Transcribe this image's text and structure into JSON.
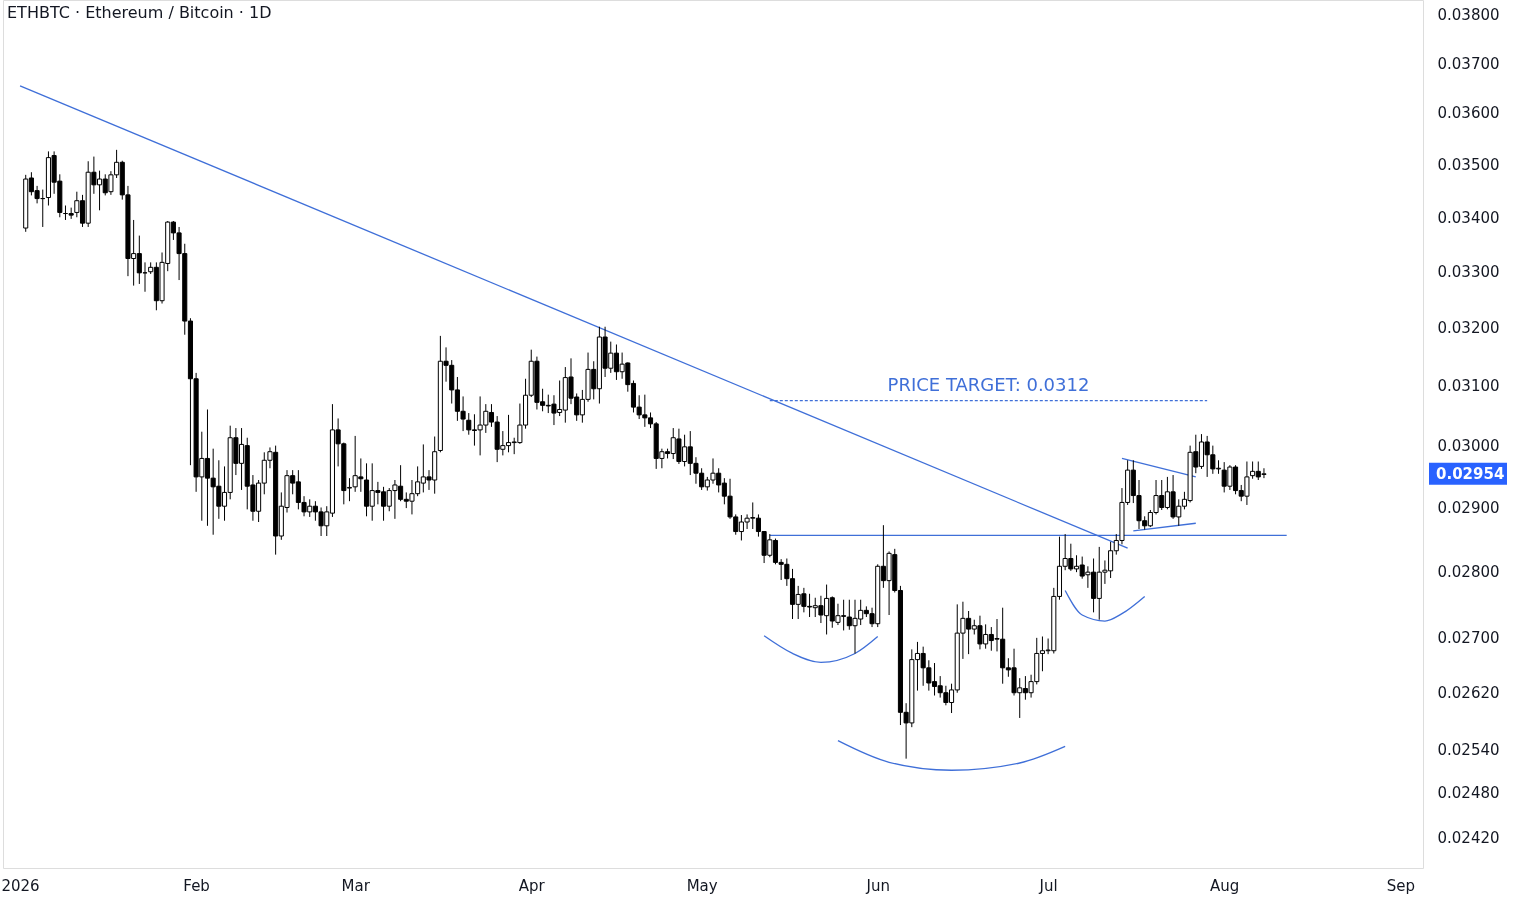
{
  "chart_data": {
    "type": "candlestick",
    "title": "ETHBTC · Ethereum / Bitcoin · 1D",
    "log": true,
    "xlim": [
      "2025-12-29",
      "2026-09-05"
    ],
    "xticks": [
      {
        "value": "2026-01-01",
        "label": "2026"
      },
      {
        "value": "2026-02-01",
        "label": "Feb"
      },
      {
        "value": "2026-03-01",
        "label": "Mar"
      },
      {
        "value": "2026-04-01",
        "label": "Apr"
      },
      {
        "value": "2026-05-01",
        "label": "May"
      },
      {
        "value": "2026-06-01",
        "label": "Jun"
      },
      {
        "value": "2026-07-01",
        "label": "Jul"
      },
      {
        "value": "2026-08-01",
        "label": "Aug"
      },
      {
        "value": "2026-09-01",
        "label": "Sep"
      }
    ],
    "ylim": [
      0.0238,
      0.0383
    ],
    "yticks": [
      {
        "value": 0.038,
        "label": "0.03800"
      },
      {
        "value": 0.037,
        "label": "0.03700"
      },
      {
        "value": 0.036,
        "label": "0.03600"
      },
      {
        "value": 0.035,
        "label": "0.03500"
      },
      {
        "value": 0.034,
        "label": "0.03400"
      },
      {
        "value": 0.033,
        "label": "0.03300"
      },
      {
        "value": 0.032,
        "label": "0.03200"
      },
      {
        "value": 0.031,
        "label": "0.03100"
      },
      {
        "value": 0.03,
        "label": "0.03000"
      },
      {
        "value": 0.029,
        "label": "0.02900"
      },
      {
        "value": 0.028,
        "label": "0.02800"
      },
      {
        "value": 0.027,
        "label": "0.02700"
      },
      {
        "value": 0.0262,
        "label": "0.02620"
      },
      {
        "value": 0.0254,
        "label": "0.02540"
      },
      {
        "value": 0.0248,
        "label": "0.02480"
      },
      {
        "value": 0.0242,
        "label": "0.02420"
      }
    ],
    "x": [
      "2026-01-02",
      "2026-01-03",
      "2026-01-04",
      "2026-01-05",
      "2026-01-06",
      "2026-01-07",
      "2026-01-08",
      "2026-01-09",
      "2026-01-10",
      "2026-01-11",
      "2026-01-12",
      "2026-01-13",
      "2026-01-14",
      "2026-01-15",
      "2026-01-16",
      "2026-01-17",
      "2026-01-18",
      "2026-01-19",
      "2026-01-20",
      "2026-01-21",
      "2026-01-22",
      "2026-01-23",
      "2026-01-24",
      "2026-01-25",
      "2026-01-26",
      "2026-01-27",
      "2026-01-28",
      "2026-01-29",
      "2026-01-30",
      "2026-01-31",
      "2026-02-01",
      "2026-02-02",
      "2026-02-03",
      "2026-02-04",
      "2026-02-05",
      "2026-02-06",
      "2026-02-07",
      "2026-02-08",
      "2026-02-09",
      "2026-02-10",
      "2026-02-11",
      "2026-02-12",
      "2026-02-13",
      "2026-02-14",
      "2026-02-15",
      "2026-02-16",
      "2026-02-17",
      "2026-02-18",
      "2026-02-19",
      "2026-02-20",
      "2026-02-21",
      "2026-02-22",
      "2026-02-23",
      "2026-02-24",
      "2026-02-25",
      "2026-02-26",
      "2026-02-27",
      "2026-02-28",
      "2026-03-01",
      "2026-03-02",
      "2026-03-03",
      "2026-03-04",
      "2026-03-05",
      "2026-03-06",
      "2026-03-07",
      "2026-03-08",
      "2026-03-09",
      "2026-03-10",
      "2026-03-11",
      "2026-03-12",
      "2026-03-13",
      "2026-03-14",
      "2026-03-15",
      "2026-03-16",
      "2026-03-17",
      "2026-03-18",
      "2026-03-19",
      "2026-03-20",
      "2026-03-21",
      "2026-03-22",
      "2026-03-23",
      "2026-03-24",
      "2026-03-25",
      "2026-03-26",
      "2026-03-27",
      "2026-03-28",
      "2026-03-29",
      "2026-03-30",
      "2026-03-31",
      "2026-04-01",
      "2026-04-02",
      "2026-04-03",
      "2026-04-04",
      "2026-04-05",
      "2026-04-06",
      "2026-04-07",
      "2026-04-08",
      "2026-04-09",
      "2026-04-10",
      "2026-04-11",
      "2026-04-12",
      "2026-04-13",
      "2026-04-14",
      "2026-04-15",
      "2026-04-16",
      "2026-04-17",
      "2026-04-18",
      "2026-04-19",
      "2026-04-20",
      "2026-04-21",
      "2026-04-22",
      "2026-04-23",
      "2026-04-24",
      "2026-04-25",
      "2026-04-26",
      "2026-04-27",
      "2026-04-28",
      "2026-04-29",
      "2026-04-30",
      "2026-05-01",
      "2026-05-02",
      "2026-05-03",
      "2026-05-04",
      "2026-05-05",
      "2026-05-06",
      "2026-05-07",
      "2026-05-08",
      "2026-05-09",
      "2026-05-10",
      "2026-05-11",
      "2026-05-12",
      "2026-05-13",
      "2026-05-14",
      "2026-05-15",
      "2026-05-16",
      "2026-05-17",
      "2026-05-18",
      "2026-05-19",
      "2026-05-20",
      "2026-05-21",
      "2026-05-22",
      "2026-05-23",
      "2026-05-24",
      "2026-05-25",
      "2026-05-26",
      "2026-05-27",
      "2026-05-28",
      "2026-05-29",
      "2026-05-30",
      "2026-05-31",
      "2026-06-01",
      "2026-06-02",
      "2026-06-03",
      "2026-06-04",
      "2026-06-05",
      "2026-06-06",
      "2026-06-07",
      "2026-06-08",
      "2026-06-09",
      "2026-06-10",
      "2026-06-11",
      "2026-06-12",
      "2026-06-13",
      "2026-06-14",
      "2026-06-15",
      "2026-06-16",
      "2026-06-17",
      "2026-06-18",
      "2026-06-19",
      "2026-06-20",
      "2026-06-21",
      "2026-06-22",
      "2026-06-23",
      "2026-06-24",
      "2026-06-25",
      "2026-06-26",
      "2026-06-27",
      "2026-06-28",
      "2026-06-29",
      "2026-06-30",
      "2026-07-01",
      "2026-07-02",
      "2026-07-03",
      "2026-07-04",
      "2026-07-05",
      "2026-07-06",
      "2026-07-07",
      "2026-07-08",
      "2026-07-09",
      "2026-07-10",
      "2026-07-11",
      "2026-07-12",
      "2026-07-13",
      "2026-07-14",
      "2026-07-15",
      "2026-07-16",
      "2026-07-17",
      "2026-07-18",
      "2026-07-19",
      "2026-07-20",
      "2026-07-21",
      "2026-07-22",
      "2026-07-23",
      "2026-07-24",
      "2026-07-25",
      "2026-07-26",
      "2026-07-27",
      "2026-07-28",
      "2026-07-29",
      "2026-07-30",
      "2026-07-31",
      "2026-08-01",
      "2026-08-02",
      "2026-08-03",
      "2026-08-04",
      "2026-08-05",
      "2026-08-06",
      "2026-08-07",
      "2026-08-08"
    ],
    "ohlc": [
      [
        0.0338,
        0.0348,
        0.03373,
        0.03472
      ],
      [
        0.03474,
        0.03485,
        0.03441,
        0.03448
      ],
      [
        0.0345,
        0.03459,
        0.03426,
        0.03435
      ],
      [
        0.03435,
        0.03452,
        0.03382,
        0.03435
      ],
      [
        0.03437,
        0.03525,
        0.03422,
        0.03513
      ],
      [
        0.03517,
        0.03525,
        0.03444,
        0.03466
      ],
      [
        0.03468,
        0.03481,
        0.034,
        0.03409
      ],
      [
        0.03407,
        0.03422,
        0.03395,
        0.03407
      ],
      [
        0.03407,
        0.03418,
        0.03397,
        0.03404
      ],
      [
        0.03409,
        0.03448,
        0.034,
        0.03431
      ],
      [
        0.03431,
        0.03442,
        0.03382,
        0.03389
      ],
      [
        0.03389,
        0.03506,
        0.03382,
        0.03485
      ],
      [
        0.03485,
        0.03515,
        0.03444,
        0.03461
      ],
      [
        0.03461,
        0.03488,
        0.03413,
        0.03472
      ],
      [
        0.03472,
        0.03481,
        0.03441,
        0.03446
      ],
      [
        0.03448,
        0.03487,
        0.03442,
        0.0348
      ],
      [
        0.0348,
        0.03528,
        0.03474,
        0.03504
      ],
      [
        0.03504,
        0.03507,
        0.03433,
        0.03442
      ],
      [
        0.03442,
        0.03459,
        0.03292,
        0.03324
      ],
      [
        0.03324,
        0.03395,
        0.03275,
        0.03333
      ],
      [
        0.03333,
        0.03366,
        0.03278,
        0.03298
      ],
      [
        0.03298,
        0.03317,
        0.03264,
        0.03298
      ],
      [
        0.033,
        0.03317,
        0.03296,
        0.03308
      ],
      [
        0.03308,
        0.03317,
        0.03231,
        0.03248
      ],
      [
        0.03248,
        0.03335,
        0.03243,
        0.03317
      ],
      [
        0.03315,
        0.03393,
        0.03301,
        0.03391
      ],
      [
        0.03391,
        0.03393,
        0.03358,
        0.03371
      ],
      [
        0.03371,
        0.03382,
        0.03285,
        0.03333
      ],
      [
        0.03333,
        0.03351,
        0.03188,
        0.03212
      ],
      [
        0.03212,
        0.03217,
        0.02968,
        0.03112
      ],
      [
        0.03112,
        0.03122,
        0.02925,
        0.02949
      ],
      [
        0.02949,
        0.03023,
        0.02879,
        0.02979
      ],
      [
        0.02979,
        0.0306,
        0.02871,
        0.02947
      ],
      [
        0.02947,
        0.02995,
        0.02857,
        0.02933
      ],
      [
        0.02934,
        0.02976,
        0.02882,
        0.02902
      ],
      [
        0.02902,
        0.02966,
        0.02879,
        0.02924
      ],
      [
        0.02924,
        0.03033,
        0.02913,
        0.03013
      ],
      [
        0.03013,
        0.03029,
        0.02952,
        0.02971
      ],
      [
        0.02971,
        0.03029,
        0.02928,
        0.03002
      ],
      [
        0.03,
        0.03013,
        0.02897,
        0.02934
      ],
      [
        0.02936,
        0.02952,
        0.02879,
        0.02894
      ],
      [
        0.02894,
        0.02944,
        0.02877,
        0.02939
      ],
      [
        0.02939,
        0.02989,
        0.02921,
        0.02976
      ],
      [
        0.02976,
        0.02997,
        0.02963,
        0.0299
      ],
      [
        0.02989,
        0.03,
        0.02826,
        0.02855
      ],
      [
        0.02855,
        0.02924,
        0.02849,
        0.02902
      ],
      [
        0.029,
        0.0296,
        0.02892,
        0.02951
      ],
      [
        0.02951,
        0.0296,
        0.02921,
        0.02939
      ],
      [
        0.02941,
        0.0296,
        0.02897,
        0.02908
      ],
      [
        0.02908,
        0.02918,
        0.02886,
        0.02893
      ],
      [
        0.02893,
        0.02913,
        0.02885,
        0.02902
      ],
      [
        0.02902,
        0.0291,
        0.02879,
        0.02893
      ],
      [
        0.02893,
        0.029,
        0.02855,
        0.02871
      ],
      [
        0.02871,
        0.02902,
        0.02855,
        0.02893
      ],
      [
        0.02891,
        0.03069,
        0.02885,
        0.03026
      ],
      [
        0.03026,
        0.03045,
        0.02966,
        0.03003
      ],
      [
        0.03003,
        0.03005,
        0.02905,
        0.02927
      ],
      [
        0.02931,
        0.02947,
        0.0291,
        0.02932
      ],
      [
        0.02933,
        0.03016,
        0.02925,
        0.02951
      ],
      [
        0.02949,
        0.02979,
        0.02925,
        0.02946
      ],
      [
        0.02944,
        0.02971,
        0.02886,
        0.02902
      ],
      [
        0.02902,
        0.02971,
        0.02879,
        0.02927
      ],
      [
        0.02927,
        0.02941,
        0.02905,
        0.02924
      ],
      [
        0.02925,
        0.02933,
        0.02879,
        0.02902
      ],
      [
        0.02902,
        0.02931,
        0.02894,
        0.02927
      ],
      [
        0.02927,
        0.02944,
        0.02882,
        0.02936
      ],
      [
        0.02934,
        0.02968,
        0.0291,
        0.02913
      ],
      [
        0.02913,
        0.02924,
        0.02899,
        0.0291
      ],
      [
        0.0291,
        0.02944,
        0.02889,
        0.02922
      ],
      [
        0.02922,
        0.02966,
        0.02918,
        0.02941
      ],
      [
        0.02939,
        0.03002,
        0.02924,
        0.02949
      ],
      [
        0.02949,
        0.0296,
        0.02928,
        0.02944
      ],
      [
        0.02944,
        0.03015,
        0.02922,
        0.0299
      ],
      [
        0.02992,
        0.03186,
        0.02989,
        0.03142
      ],
      [
        0.03142,
        0.03166,
        0.03107,
        0.03135
      ],
      [
        0.03135,
        0.03144,
        0.0307,
        0.03093
      ],
      [
        0.03093,
        0.03115,
        0.03041,
        0.03057
      ],
      [
        0.03057,
        0.03082,
        0.03024,
        0.03044
      ],
      [
        0.03042,
        0.03054,
        0.03018,
        0.03026
      ],
      [
        0.03026,
        0.03052,
        0.03,
        0.03025
      ],
      [
        0.03026,
        0.03082,
        0.02984,
        0.03034
      ],
      [
        0.03034,
        0.03069,
        0.03021,
        0.03057
      ],
      [
        0.03055,
        0.03069,
        0.03031,
        0.03039
      ],
      [
        0.03039,
        0.03049,
        0.02973,
        0.02994
      ],
      [
        0.02994,
        0.03024,
        0.02984,
        0.03
      ],
      [
        0.03,
        0.03051,
        0.02989,
        0.03005
      ],
      [
        0.03005,
        0.03013,
        0.02986,
        0.03006
      ],
      [
        0.03005,
        0.0307,
        0.03003,
        0.03034
      ],
      [
        0.03034,
        0.03112,
        0.03028,
        0.03084
      ],
      [
        0.03084,
        0.03162,
        0.03081,
        0.03142
      ],
      [
        0.03142,
        0.0315,
        0.0306,
        0.03072
      ],
      [
        0.03073,
        0.03095,
        0.03057,
        0.03067
      ],
      [
        0.03067,
        0.03085,
        0.03054,
        0.03066
      ],
      [
        0.03069,
        0.03084,
        0.03034,
        0.03054
      ],
      [
        0.03055,
        0.03109,
        0.03049,
        0.0306
      ],
      [
        0.03059,
        0.03132,
        0.03038,
        0.03114
      ],
      [
        0.03115,
        0.03147,
        0.03069,
        0.03079
      ],
      [
        0.03081,
        0.03087,
        0.03041,
        0.03051
      ],
      [
        0.03051,
        0.03093,
        0.03038,
        0.03077
      ],
      [
        0.03077,
        0.03157,
        0.03073,
        0.03128
      ],
      [
        0.03128,
        0.03142,
        0.03077,
        0.03095
      ],
      [
        0.03095,
        0.03202,
        0.0307,
        0.03184
      ],
      [
        0.03184,
        0.03202,
        0.03115,
        0.0313
      ],
      [
        0.0313,
        0.03176,
        0.03122,
        0.03156
      ],
      [
        0.03156,
        0.03171,
        0.0311,
        0.03124
      ],
      [
        0.03124,
        0.03157,
        0.03112,
        0.03137
      ],
      [
        0.03139,
        0.0314,
        0.0309,
        0.03102
      ],
      [
        0.03104,
        0.03109,
        0.03055,
        0.03064
      ],
      [
        0.03064,
        0.03084,
        0.03044,
        0.03051
      ],
      [
        0.03051,
        0.03085,
        0.03031,
        0.03046
      ],
      [
        0.03046,
        0.03055,
        0.03029,
        0.03036
      ],
      [
        0.03036,
        0.03039,
        0.02962,
        0.02979
      ],
      [
        0.02979,
        0.02995,
        0.02963,
        0.0299
      ],
      [
        0.0299,
        0.02995,
        0.02979,
        0.02987
      ],
      [
        0.02987,
        0.03029,
        0.02978,
        0.03013
      ],
      [
        0.03011,
        0.03028,
        0.0297,
        0.02974
      ],
      [
        0.02974,
        0.03018,
        0.02966,
        0.02998
      ],
      [
        0.02998,
        0.03024,
        0.02952,
        0.02971
      ],
      [
        0.02971,
        0.02981,
        0.02938,
        0.02955
      ],
      [
        0.02955,
        0.02963,
        0.02928,
        0.02933
      ],
      [
        0.02933,
        0.02949,
        0.02927,
        0.02944
      ],
      [
        0.02944,
        0.02979,
        0.02938,
        0.02955
      ],
      [
        0.02955,
        0.02963,
        0.02924,
        0.02936
      ],
      [
        0.02939,
        0.02947,
        0.02905,
        0.02918
      ],
      [
        0.02918,
        0.02946,
        0.02882,
        0.02885
      ],
      [
        0.02885,
        0.02889,
        0.02857,
        0.02862
      ],
      [
        0.02862,
        0.02888,
        0.02848,
        0.02877
      ],
      [
        0.02877,
        0.02889,
        0.02866,
        0.02883
      ],
      [
        0.02883,
        0.02908,
        0.02866,
        0.02884
      ],
      [
        0.02883,
        0.02889,
        0.02854,
        0.02862
      ],
      [
        0.02862,
        0.02862,
        0.02813,
        0.02825
      ],
      [
        0.02825,
        0.02858,
        0.02822,
        0.02849
      ],
      [
        0.02848,
        0.02851,
        0.02811,
        0.02814
      ],
      [
        0.02814,
        0.02819,
        0.02787,
        0.02811
      ],
      [
        0.02811,
        0.0282,
        0.02778,
        0.02789
      ],
      [
        0.02789,
        0.02804,
        0.02728,
        0.0275
      ],
      [
        0.0275,
        0.02778,
        0.02728,
        0.02765
      ],
      [
        0.02766,
        0.02775,
        0.02738,
        0.02747
      ],
      [
        0.02747,
        0.02766,
        0.02731,
        0.02746
      ],
      [
        0.02745,
        0.0276,
        0.02731,
        0.02748
      ],
      [
        0.02748,
        0.02763,
        0.02722,
        0.02734
      ],
      [
        0.02733,
        0.0278,
        0.02705,
        0.02759
      ],
      [
        0.0276,
        0.02762,
        0.02715,
        0.02725
      ],
      [
        0.02723,
        0.02751,
        0.02719,
        0.02733
      ],
      [
        0.02733,
        0.02757,
        0.02711,
        0.02732
      ],
      [
        0.02731,
        0.02757,
        0.02712,
        0.02718
      ],
      [
        0.02718,
        0.02757,
        0.02677,
        0.02729
      ],
      [
        0.02728,
        0.02757,
        0.02719,
        0.02741
      ],
      [
        0.02741,
        0.02747,
        0.02731,
        0.02736
      ],
      [
        0.02736,
        0.02745,
        0.02716,
        0.02721
      ],
      [
        0.02721,
        0.02811,
        0.02716,
        0.02808
      ],
      [
        0.02808,
        0.02872,
        0.02775,
        0.02786
      ],
      [
        0.02786,
        0.02831,
        0.02734,
        0.02828
      ],
      [
        0.02826,
        0.02835,
        0.02768,
        0.02771
      ],
      [
        0.02771,
        0.02778,
        0.02574,
        0.02592
      ],
      [
        0.02592,
        0.02605,
        0.02527,
        0.02577
      ],
      [
        0.02577,
        0.02683,
        0.02571,
        0.02668
      ],
      [
        0.02668,
        0.02694,
        0.02623,
        0.02677
      ],
      [
        0.02677,
        0.02687,
        0.0263,
        0.02656
      ],
      [
        0.02656,
        0.02667,
        0.02623,
        0.02634
      ],
      [
        0.02636,
        0.02663,
        0.02616,
        0.02629
      ],
      [
        0.0263,
        0.02644,
        0.02613,
        0.0262
      ],
      [
        0.0262,
        0.0263,
        0.02602,
        0.02606
      ],
      [
        0.02606,
        0.02633,
        0.02591,
        0.02624
      ],
      [
        0.02624,
        0.0275,
        0.0262,
        0.02707
      ],
      [
        0.02707,
        0.02754,
        0.02669,
        0.02729
      ],
      [
        0.02729,
        0.0274,
        0.02676,
        0.02713
      ],
      [
        0.02713,
        0.02727,
        0.02705,
        0.02718
      ],
      [
        0.02718,
        0.02733,
        0.02683,
        0.02691
      ],
      [
        0.02691,
        0.0272,
        0.02684,
        0.02705
      ],
      [
        0.02705,
        0.02716,
        0.02681,
        0.02696
      ],
      [
        0.02698,
        0.02728,
        0.0268,
        0.02699
      ],
      [
        0.02698,
        0.02745,
        0.02633,
        0.02656
      ],
      [
        0.02656,
        0.0267,
        0.02643,
        0.02653
      ],
      [
        0.02656,
        0.02684,
        0.02616,
        0.0262
      ],
      [
        0.0262,
        0.02641,
        0.02584,
        0.02627
      ],
      [
        0.02626,
        0.02644,
        0.0261,
        0.0262
      ],
      [
        0.0262,
        0.02646,
        0.02613,
        0.02636
      ],
      [
        0.02636,
        0.027,
        0.02632,
        0.02677
      ],
      [
        0.02677,
        0.02702,
        0.02651,
        0.02681
      ],
      [
        0.02681,
        0.02699,
        0.02676,
        0.02682
      ],
      [
        0.02681,
        0.02775,
        0.02677,
        0.02762
      ],
      [
        0.02762,
        0.02854,
        0.02757,
        0.02808
      ],
      [
        0.02808,
        0.02858,
        0.02802,
        0.0282
      ],
      [
        0.0282,
        0.02843,
        0.02801,
        0.02804
      ],
      [
        0.02804,
        0.02825,
        0.02799,
        0.02808
      ],
      [
        0.0281,
        0.02823,
        0.02789,
        0.02793
      ],
      [
        0.02795,
        0.02808,
        0.02775,
        0.02799
      ],
      [
        0.02799,
        0.0282,
        0.02738,
        0.02759
      ],
      [
        0.02759,
        0.02838,
        0.02727,
        0.02799
      ],
      [
        0.02799,
        0.02817,
        0.02781,
        0.02802
      ],
      [
        0.02801,
        0.02846,
        0.0279,
        0.02832
      ],
      [
        0.02832,
        0.02858,
        0.02826,
        0.02848
      ],
      [
        0.02848,
        0.02931,
        0.02842,
        0.02908
      ],
      [
        0.02908,
        0.02976,
        0.02904,
        0.0296
      ],
      [
        0.0296,
        0.02976,
        0.02907,
        0.02919
      ],
      [
        0.02919,
        0.02944,
        0.02866,
        0.02879
      ],
      [
        0.02879,
        0.02886,
        0.02865,
        0.02871
      ],
      [
        0.02871,
        0.02896,
        0.02869,
        0.02892
      ],
      [
        0.02892,
        0.02944,
        0.02889,
        0.02919
      ],
      [
        0.02919,
        0.02944,
        0.02896,
        0.029
      ],
      [
        0.029,
        0.02949,
        0.02897,
        0.02925
      ],
      [
        0.02925,
        0.02952,
        0.02882,
        0.02885
      ],
      [
        0.02885,
        0.02913,
        0.02871,
        0.02902
      ],
      [
        0.02902,
        0.02925,
        0.02897,
        0.02913
      ],
      [
        0.02911,
        0.03,
        0.02908,
        0.02989
      ],
      [
        0.0299,
        0.03018,
        0.02955,
        0.02965
      ],
      [
        0.02966,
        0.03019,
        0.02962,
        0.03006
      ],
      [
        0.03006,
        0.03016,
        0.02949,
        0.02985
      ],
      [
        0.02985,
        0.03,
        0.02954,
        0.02962
      ],
      [
        0.02962,
        0.02976,
        0.02954,
        0.02963
      ],
      [
        0.0296,
        0.02973,
        0.02924,
        0.02934
      ],
      [
        0.02934,
        0.02968,
        0.02928,
        0.02965
      ],
      [
        0.02965,
        0.02968,
        0.02921,
        0.02927
      ],
      [
        0.02927,
        0.02936,
        0.0291,
        0.02918
      ],
      [
        0.02918,
        0.02974,
        0.02904,
        0.02949
      ],
      [
        0.02951,
        0.02974,
        0.02946,
        0.02958
      ],
      [
        0.02958,
        0.02974,
        0.02944,
        0.02949
      ],
      [
        0.02953,
        0.02963,
        0.02947,
        0.02954
      ]
    ],
    "series": [
      {
        "type": "line",
        "color": "#3f6fd8",
        "x": [
          "2026-01-01",
          "2026-07-15"
        ],
        "values": [
          0.03654,
          0.02836
        ]
      },
      {
        "type": "line",
        "color": "#3f6fd8",
        "x": [
          "2026-05-13",
          "2026-08-12"
        ],
        "values": [
          0.02856,
          0.02856
        ]
      },
      {
        "type": "line",
        "color": "#3f6fd8",
        "line_style": "dashed",
        "x": [
          "2026-05-13",
          "2026-07-29"
        ],
        "values": [
          0.03075,
          0.03075
        ]
      },
      {
        "type": "line",
        "color": "#3f6fd8",
        "x": [
          "2026-05-12",
          "2026-05-17",
          "2026-05-22",
          "2026-05-28",
          "2026-06-01"
        ],
        "values": [
          0.02703,
          0.02677,
          0.02664,
          0.02677,
          0.02702
        ]
      },
      {
        "type": "line",
        "color": "#3f6fd8",
        "x": [
          "2026-05-25",
          "2026-06-03",
          "2026-06-14",
          "2026-06-26",
          "2026-07-04"
        ],
        "values": [
          0.02552,
          0.02522,
          0.02511,
          0.02521,
          0.02544
        ]
      },
      {
        "type": "line",
        "color": "#3f6fd8",
        "x": [
          "2026-07-04",
          "2026-07-07",
          "2026-07-11",
          "2026-07-14",
          "2026-07-18"
        ],
        "values": [
          0.02771,
          0.02734,
          0.02725,
          0.02736,
          0.02762
        ]
      },
      {
        "type": "line",
        "color": "#3f6fd8",
        "x": [
          "2026-07-14",
          "2026-07-27"
        ],
        "values": [
          0.02979,
          0.02949
        ]
      },
      {
        "type": "line",
        "color": "#3f6fd8",
        "x": [
          "2026-07-16",
          "2026-07-27"
        ],
        "values": [
          0.02863,
          0.02875
        ]
      }
    ],
    "annotations": [
      "PRICE TARGET: 0.0312",
      "0.02954"
    ]
  }
}
